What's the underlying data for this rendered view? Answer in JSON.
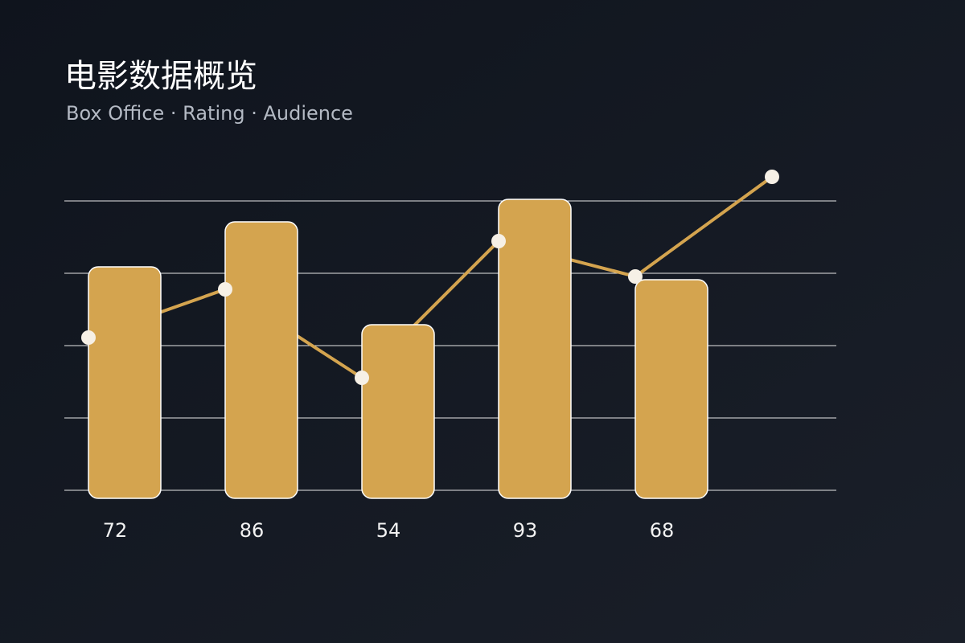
{
  "chart_data": {
    "type": "bar-line",
    "title": "电影数据概览",
    "subtitle": "Box Office · Rating · Audience",
    "categories": [
      null,
      null,
      null,
      null,
      null,
      null
    ],
    "series": [
      {
        "type": "bar",
        "color": "#d4a44f",
        "values": [
          72,
          86,
          54,
          93,
          68,
          null
        ]
      },
      {
        "type": "line",
        "color": "#d4a44f",
        "values": [
          50,
          65,
          37.5,
          80,
          69,
          100
        ]
      }
    ],
    "ylim": [
      0,
      100
    ]
  }
}
